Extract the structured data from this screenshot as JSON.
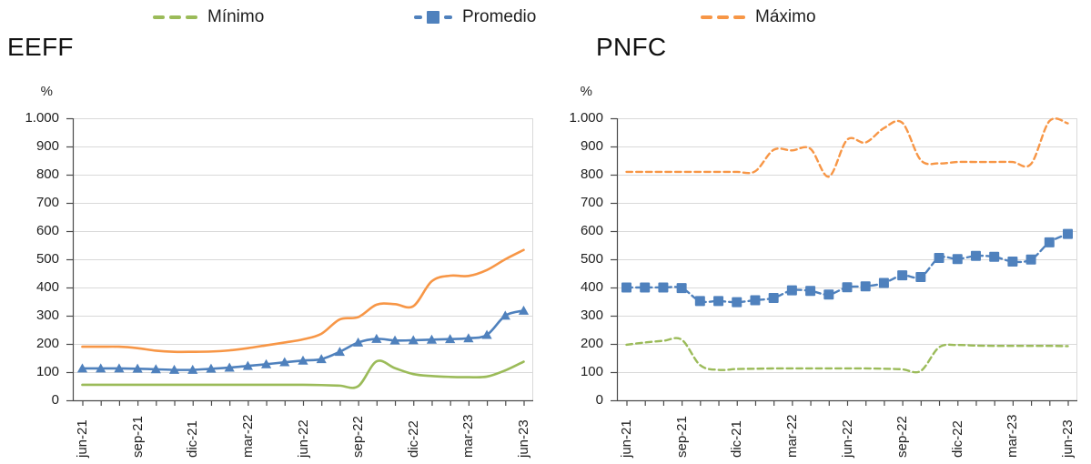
{
  "figure": {
    "background": "#ffffff",
    "grid_color": "#d9d9d9",
    "axis_color": "#4a4a4a",
    "text_color": "#1f1f1f"
  },
  "legend": {
    "items": [
      {
        "id": "minimo",
        "label": "Mínimo",
        "color": "#9BBB59",
        "sample": "dashed-line"
      },
      {
        "id": "promedio",
        "label": "Promedio",
        "color": "#4F81BD",
        "sample": "dashed-line-with-square"
      },
      {
        "id": "maximo",
        "label": "Máximo",
        "color": "#F79646",
        "sample": "dashed-line"
      }
    ]
  },
  "chart_data": [
    {
      "type": "line",
      "title": "EEFF",
      "ylabel": "%",
      "ylim": [
        0,
        1000
      ],
      "grid": true,
      "legend_position": "top",
      "line_style": "solid",
      "ytick_labels": [
        "0",
        "100",
        "200",
        "300",
        "400",
        "500",
        "600",
        "700",
        "800",
        "900",
        "1.000"
      ],
      "x_categories": [
        "jun-21",
        "jul-21",
        "ago-21",
        "sep-21",
        "oct-21",
        "nov-21",
        "dic-21",
        "ene-22",
        "feb-22",
        "mar-22",
        "abr-22",
        "may-22",
        "jun-22",
        "jul-22",
        "ago-22",
        "sep-22",
        "oct-22",
        "nov-22",
        "dic-22",
        "ene-23",
        "feb-23",
        "mar-23",
        "abr-23",
        "may-23",
        "jun-23"
      ],
      "xtick_labels": [
        "jun-21",
        "sep-21",
        "dic-21",
        "mar-22",
        "jun-22",
        "sep-22",
        "dic-22",
        "mar-23",
        "jun-23"
      ],
      "series": [
        {
          "name": "Mínimo",
          "color": "#9BBB59",
          "marker": "none",
          "values": [
            55,
            55,
            55,
            55,
            55,
            55,
            55,
            55,
            55,
            55,
            55,
            55,
            55,
            54,
            52,
            50,
            138,
            114,
            93,
            86,
            83,
            82,
            84,
            106,
            137
          ]
        },
        {
          "name": "Promedio",
          "color": "#4F81BD",
          "marker": "triangle",
          "values": [
            113,
            113,
            113,
            112,
            110,
            108,
            108,
            112,
            116,
            122,
            128,
            135,
            141,
            146,
            172,
            205,
            218,
            212,
            213,
            215,
            217,
            220,
            232,
            300,
            318
          ]
        },
        {
          "name": "Máximo",
          "color": "#F79646",
          "marker": "none",
          "values": [
            190,
            190,
            190,
            185,
            176,
            172,
            172,
            173,
            177,
            185,
            195,
            205,
            216,
            236,
            287,
            295,
            339,
            341,
            334,
            422,
            442,
            441,
            462,
            500,
            533
          ]
        }
      ]
    },
    {
      "type": "line",
      "title": "PNFC",
      "ylabel": "%",
      "ylim": [
        0,
        1000
      ],
      "grid": true,
      "legend_position": "top",
      "line_style": "dashed",
      "ytick_labels": [
        "0",
        "100",
        "200",
        "300",
        "400",
        "500",
        "600",
        "700",
        "800",
        "900",
        "1.000"
      ],
      "x_categories": [
        "jun-21",
        "jul-21",
        "ago-21",
        "sep-21",
        "oct-21",
        "nov-21",
        "dic-21",
        "ene-22",
        "feb-22",
        "mar-22",
        "abr-22",
        "may-22",
        "jun-22",
        "jul-22",
        "ago-22",
        "sep-22",
        "oct-22",
        "nov-22",
        "dic-22",
        "ene-23",
        "feb-23",
        "mar-23",
        "abr-23",
        "may-23",
        "jun-23"
      ],
      "xtick_labels": [
        "jun-21",
        "sep-21",
        "dic-21",
        "mar-22",
        "jun-22",
        "sep-22",
        "dic-22",
        "mar-23",
        "jun-23"
      ],
      "series": [
        {
          "name": "Mínimo",
          "color": "#9BBB59",
          "marker": "none",
          "values": [
            197,
            205,
            211,
            215,
            125,
            108,
            111,
            112,
            113,
            113,
            113,
            113,
            113,
            113,
            112,
            110,
            104,
            188,
            196,
            194,
            193,
            193,
            193,
            193,
            192
          ]
        },
        {
          "name": "Promedio",
          "color": "#4F81BD",
          "marker": "square",
          "values": [
            400,
            400,
            400,
            398,
            352,
            352,
            348,
            355,
            363,
            390,
            388,
            375,
            401,
            404,
            416,
            443,
            437,
            505,
            501,
            512,
            509,
            492,
            499,
            560,
            590
          ]
        },
        {
          "name": "Máximo",
          "color": "#F79646",
          "marker": "none",
          "values": [
            810,
            810,
            810,
            810,
            810,
            810,
            810,
            812,
            888,
            886,
            892,
            793,
            924,
            914,
            965,
            984,
            852,
            840,
            845,
            845,
            845,
            845,
            838,
            990,
            982
          ]
        }
      ]
    }
  ]
}
